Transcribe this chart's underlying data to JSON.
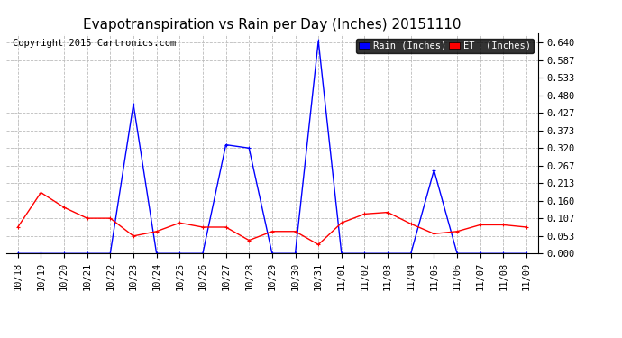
{
  "title": "Evapotranspiration vs Rain per Day (Inches) 20151110",
  "copyright": "Copyright 2015 Cartronics.com",
  "x_labels": [
    "10/18",
    "10/19",
    "10/20",
    "10/21",
    "10/22",
    "10/23",
    "10/24",
    "10/25",
    "10/26",
    "10/27",
    "10/28",
    "10/29",
    "10/30",
    "10/31",
    "11/01",
    "11/02",
    "11/03",
    "11/04",
    "11/05",
    "11/06",
    "11/07",
    "11/08",
    "11/09"
  ],
  "rain_values": [
    0.0,
    0.0,
    0.0,
    0.0,
    0.0,
    0.453,
    0.0,
    0.0,
    0.0,
    0.33,
    0.32,
    0.0,
    0.0,
    0.645,
    0.0,
    0.0,
    0.0,
    0.0,
    0.253,
    0.0,
    0.0,
    0.0,
    0.0
  ],
  "et_values": [
    0.08,
    0.185,
    0.14,
    0.107,
    0.107,
    0.053,
    0.067,
    0.093,
    0.08,
    0.08,
    0.04,
    0.067,
    0.067,
    0.027,
    0.093,
    0.12,
    0.125,
    0.09,
    0.06,
    0.067,
    0.087,
    0.087,
    0.08
  ],
  "rain_color": "#0000ff",
  "et_color": "#ff0000",
  "background_color": "#ffffff",
  "grid_color": "#bbbbbb",
  "ylim_min": 0.0,
  "ylim_max": 0.6667,
  "ytick_values": [
    0.0,
    0.053,
    0.107,
    0.16,
    0.213,
    0.267,
    0.32,
    0.373,
    0.427,
    0.48,
    0.533,
    0.587,
    0.64
  ],
  "legend_rain_label": "Rain (Inches)",
  "legend_et_label": "ET  (Inches)",
  "legend_rain_bg": "#0000ff",
  "legend_et_bg": "#ff0000",
  "title_fontsize": 11,
  "tick_fontsize": 7.5,
  "copyright_fontsize": 7.5
}
